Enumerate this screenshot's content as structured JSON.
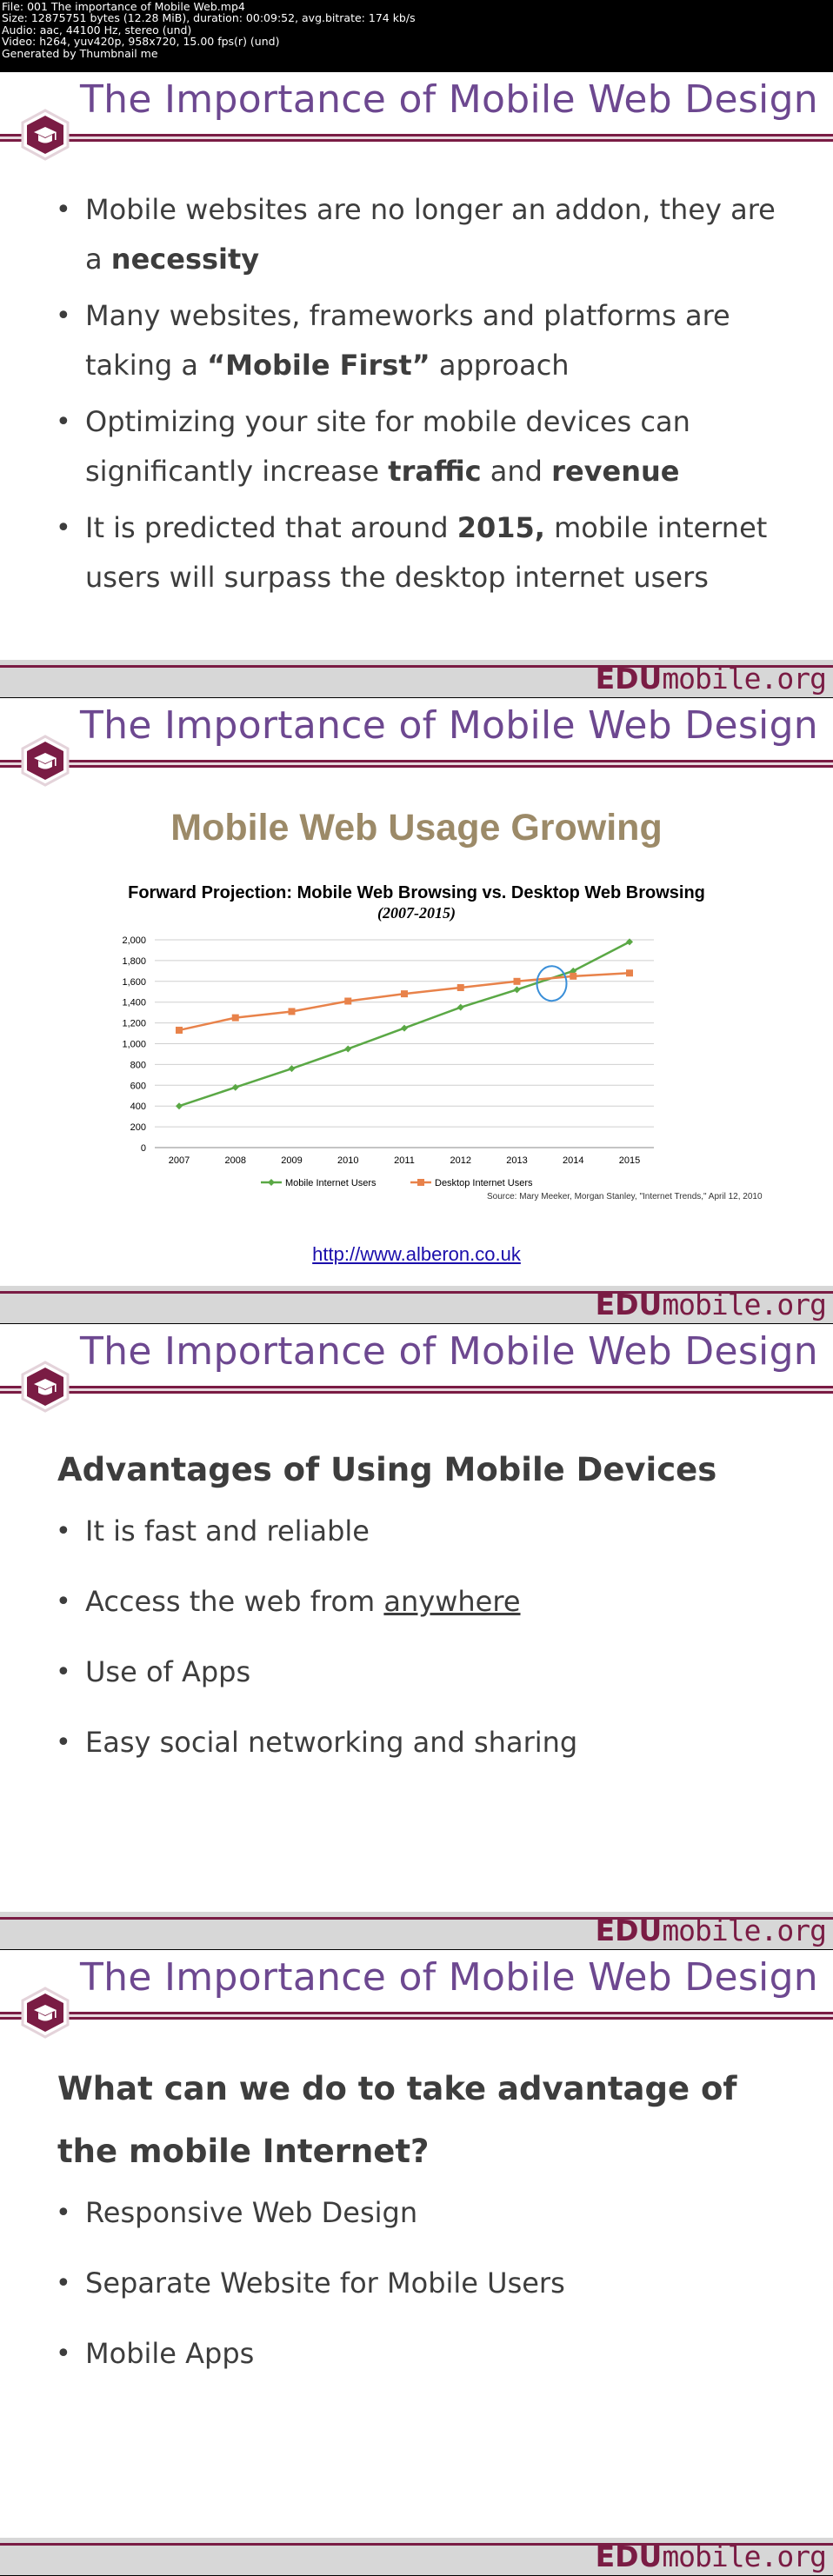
{
  "meta_lines": [
    "File: 001 The importance of Mobile Web.mp4",
    "Size: 12875751 bytes (12.28 MiB), duration: 00:09:52, avg.bitrate: 174 kb/s",
    "Audio: aac, 44100 Hz, stereo (und)",
    "Video: h264, yuv420p, 958x720, 15.00 fps(r) (und)",
    "Generated by Thumbnail me"
  ],
  "slide_title": "The Importance of Mobile Web Design",
  "footer": {
    "edu": "EDU",
    "mobile": "mobile.org"
  },
  "slide1": {
    "bullets": [
      {
        "pre": "Mobile websites are no longer an addon, they are a ",
        "b1": "necessity",
        "mid": "",
        "b2": "",
        "post": ""
      },
      {
        "pre": "Many websites, frameworks and platforms are taking a ",
        "b1": "“Mobile First”",
        "mid": " approach",
        "b2": "",
        "post": ""
      },
      {
        "pre": "Optimizing your site for mobile devices can significantly increase ",
        "b1": "traffic",
        "mid": " and ",
        "b2": "revenue",
        "post": ""
      },
      {
        "pre": " It is predicted that around ",
        "b1": "2015,",
        "mid": " mobile internet users will surpass the desktop internet users",
        "b2": "",
        "post": ""
      }
    ]
  },
  "slide2": {
    "link": "http://www.alberon.co.uk",
    "chart_data": {
      "type": "line",
      "title": "Mobile Web Usage Growing",
      "subtitle": "Forward Projection: Mobile Web Browsing vs. Desktop Web Browsing",
      "years_label": "(2007-2015)",
      "x": [
        "2007",
        "2008",
        "2009",
        "2010",
        "2011",
        "2012",
        "2013",
        "2014",
        "2015"
      ],
      "y_ticks": [
        "0",
        "200",
        "400",
        "600",
        "800",
        "1,000",
        "1,200",
        "1,400",
        "1,600",
        "1,800",
        "2,000"
      ],
      "ylim": [
        0,
        2000
      ],
      "grid": true,
      "legend": "bottom",
      "source": "Source: Mary Meeker, Morgan Stanley, \"Internet Trends,\" April 12, 2010",
      "series": [
        {
          "name": "Mobile Internet Users",
          "color": "#5aa845",
          "values": [
            400,
            580,
            760,
            950,
            1150,
            1350,
            1520,
            1700,
            1980
          ]
        },
        {
          "name": "Desktop Internet Users",
          "color": "#e8824a",
          "values": [
            1130,
            1250,
            1310,
            1410,
            1480,
            1540,
            1600,
            1650,
            1680
          ]
        }
      ]
    }
  },
  "slide3": {
    "heading": "Advantages of Using Mobile Devices",
    "bullets": [
      {
        "pre": "It is fast and reliable",
        "u": ""
      },
      {
        "pre": "Access the web from ",
        "u": "anywhere"
      },
      {
        "pre": "Use of Apps",
        "u": ""
      },
      {
        "pre": "Easy social networking and sharing",
        "u": ""
      }
    ]
  },
  "slide4": {
    "heading": "What can we do to take advantage of the mobile Internet?",
    "bullets": [
      "Responsive Web Design",
      "Separate Website for Mobile Users",
      "Mobile Apps"
    ]
  }
}
